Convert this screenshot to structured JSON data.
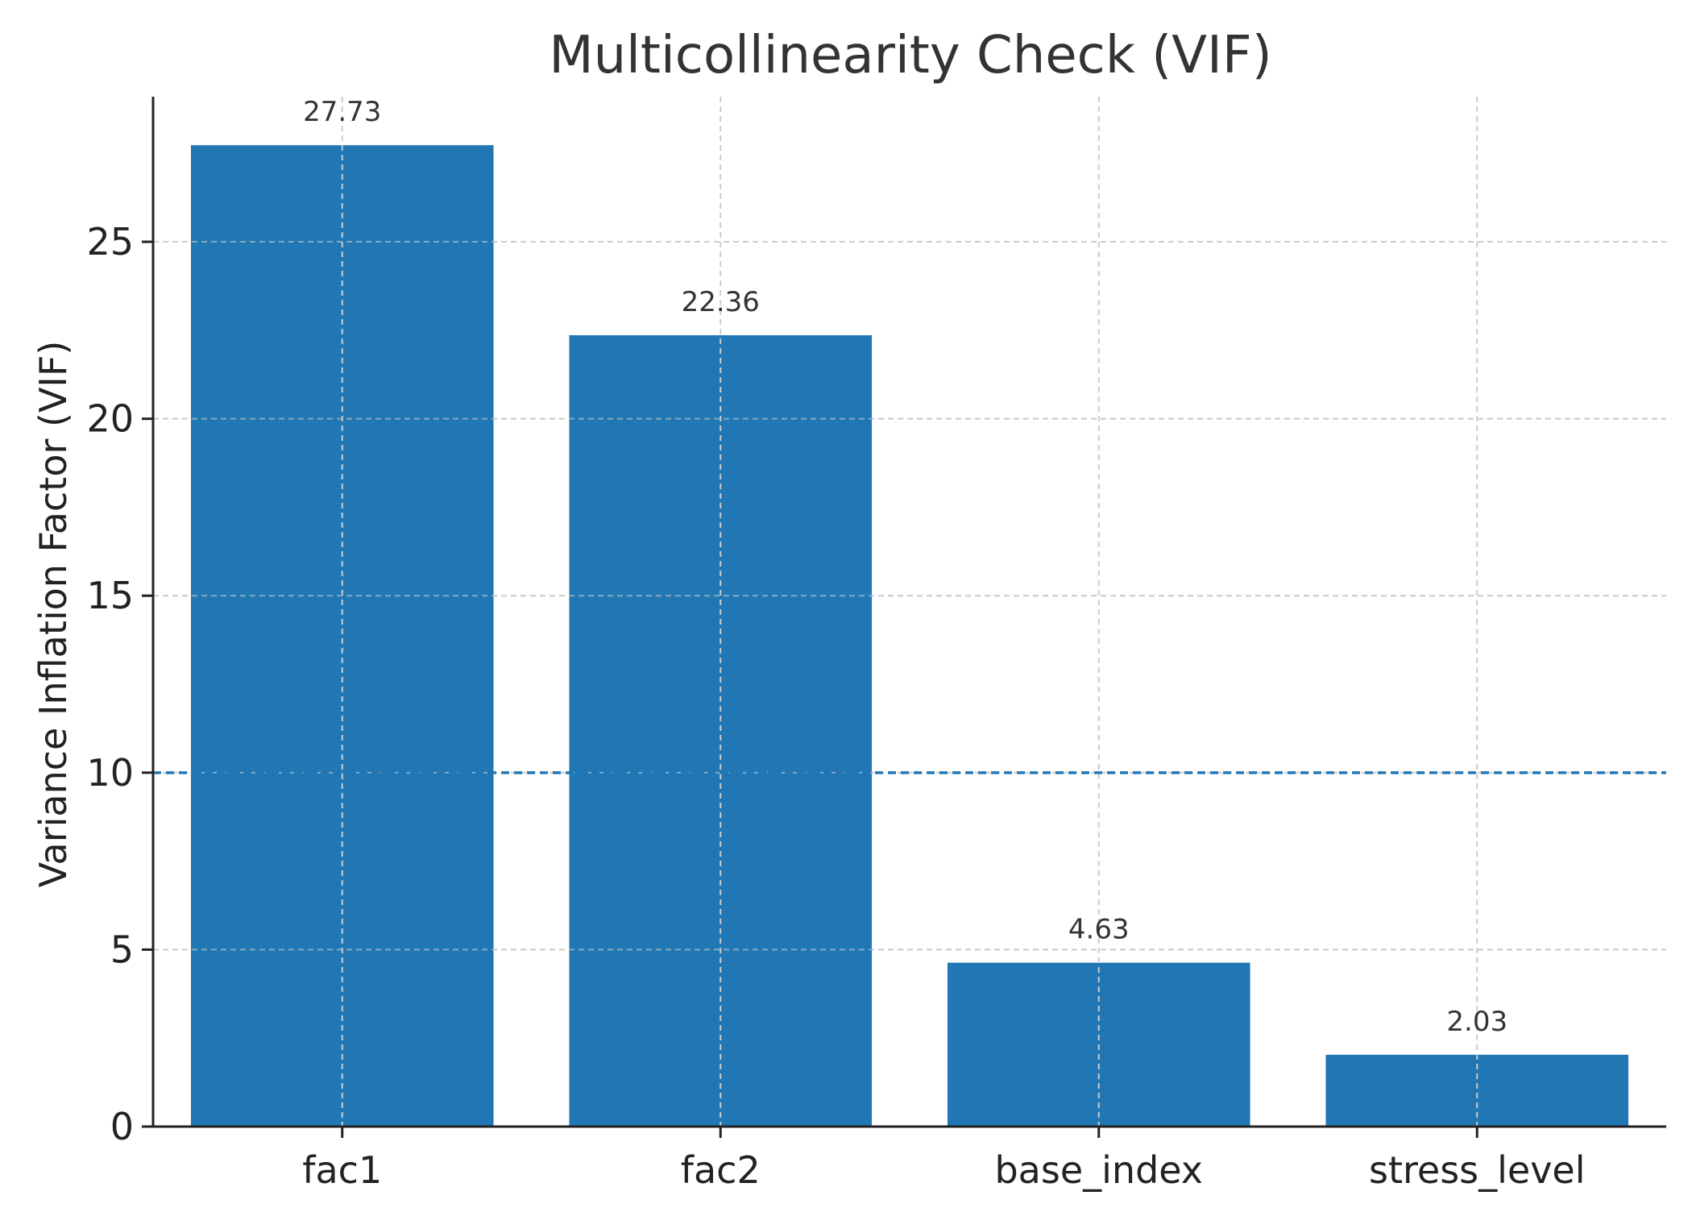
{
  "chart_data": {
    "type": "bar",
    "title": "Multicollinearity Check (VIF)",
    "xlabel": "",
    "ylabel": "Variance Inflation Factor (VIF)",
    "categories": [
      "fac1",
      "fac2",
      "base_index",
      "stress_level"
    ],
    "values": [
      27.73,
      22.36,
      4.63,
      2.03
    ],
    "value_labels": [
      "27.73",
      "22.36",
      "4.63",
      "2.03"
    ],
    "ylim": [
      0,
      29.1
    ],
    "yticks": [
      0,
      5,
      10,
      15,
      20,
      25
    ],
    "ytick_labels": [
      "0",
      "5",
      "10",
      "15",
      "20",
      "25"
    ],
    "threshold": 10,
    "grid": true,
    "colors": {
      "bar": "#2077b4",
      "threshold": "#2077b4",
      "grid": "#cccccc",
      "text": "#333333",
      "axis": "#222222"
    }
  }
}
